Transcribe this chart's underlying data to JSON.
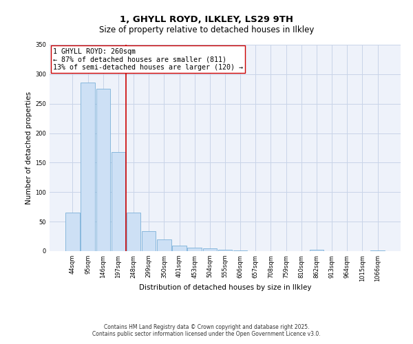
{
  "title1": "1, GHYLL ROYD, ILKLEY, LS29 9TH",
  "title2": "Size of property relative to detached houses in Ilkley",
  "xlabel": "Distribution of detached houses by size in Ilkley",
  "ylabel": "Number of detached properties",
  "categories": [
    "44sqm",
    "95sqm",
    "146sqm",
    "197sqm",
    "248sqm",
    "299sqm",
    "350sqm",
    "401sqm",
    "453sqm",
    "504sqm",
    "555sqm",
    "606sqm",
    "657sqm",
    "708sqm",
    "759sqm",
    "810sqm",
    "862sqm",
    "913sqm",
    "964sqm",
    "1015sqm",
    "1066sqm"
  ],
  "values": [
    65,
    286,
    275,
    168,
    65,
    34,
    20,
    9,
    6,
    5,
    2,
    1,
    0,
    0,
    0,
    0,
    2,
    0,
    0,
    0,
    1
  ],
  "bar_color": "#cde0f5",
  "bar_edge_color": "#7ab0d8",
  "bar_linewidth": 0.6,
  "vline_x_index": 4,
  "vline_color": "#cc0000",
  "vline_linewidth": 1.2,
  "annotation_lines": [
    "1 GHYLL ROYD: 260sqm",
    "← 87% of detached houses are smaller (811)",
    "13% of semi-detached houses are larger (120) →"
  ],
  "annotation_box_edge_color": "#cc0000",
  "ylim": [
    0,
    350
  ],
  "yticks": [
    0,
    50,
    100,
    150,
    200,
    250,
    300,
    350
  ],
  "grid_color": "#c8d4e8",
  "background_color": "#eef2fa",
  "footnote1": "Contains HM Land Registry data © Crown copyright and database right 2025.",
  "footnote2": "Contains public sector information licensed under the Open Government Licence v3.0.",
  "title_fontsize": 9.5,
  "subtitle_fontsize": 8.5,
  "axis_label_fontsize": 7.5,
  "tick_fontsize": 6.0,
  "annotation_fontsize": 7.2,
  "footnote_fontsize": 5.5
}
